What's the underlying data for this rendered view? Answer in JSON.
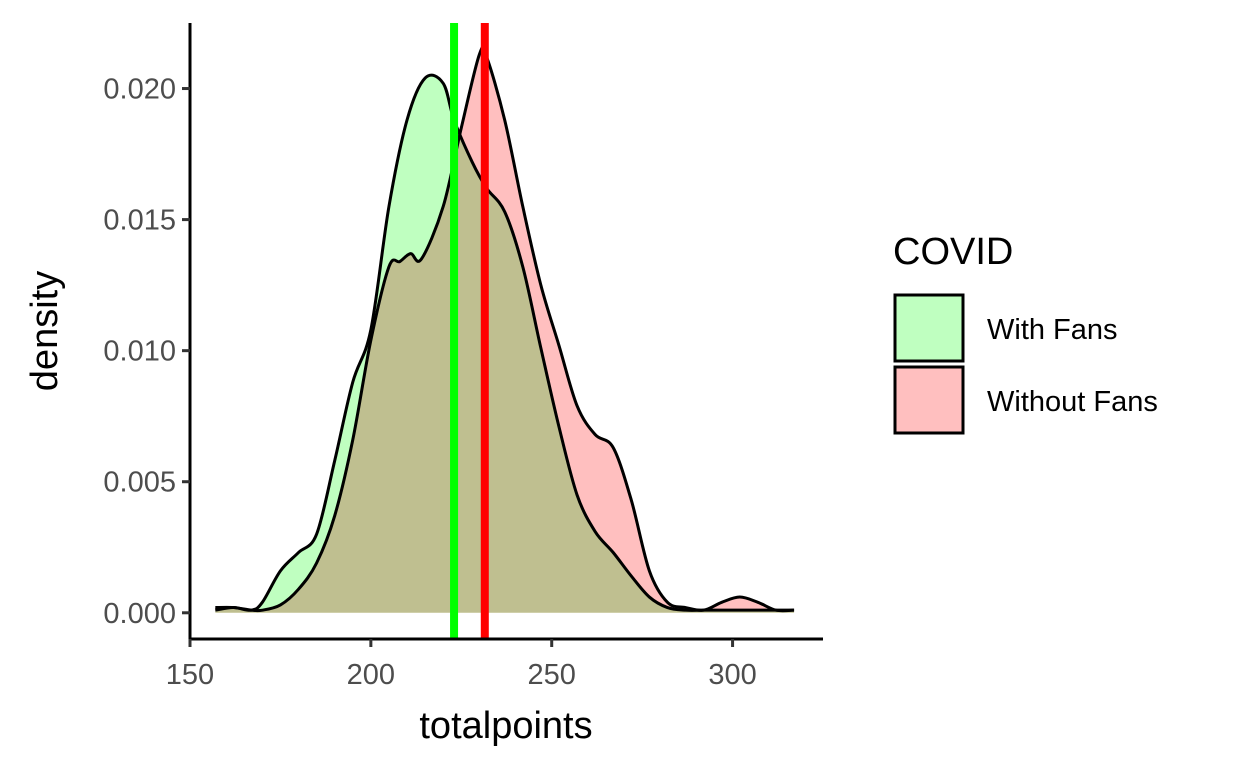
{
  "chart_data": {
    "type": "area",
    "xlabel": "totalpoints",
    "ylabel": "density",
    "xlim": [
      150,
      325
    ],
    "ylim": [
      -0.001,
      0.0225
    ],
    "x_ticks": [
      "150",
      "200",
      "250",
      "300"
    ],
    "x_tick_values": [
      150,
      200,
      250,
      300
    ],
    "y_ticks": [
      "0.000",
      "0.005",
      "0.010",
      "0.015",
      "0.020"
    ],
    "y_tick_values": [
      0,
      0.005,
      0.01,
      0.015,
      0.02
    ],
    "grid": false,
    "legend": {
      "title": "COVID",
      "placement": "right",
      "entries": [
        "With Fans",
        "Without Fans"
      ]
    },
    "series": [
      {
        "name": "With Fans",
        "fill_color": "#bfffc0",
        "line_color": "#000000",
        "points": [
          [
            157,
            0.0001
          ],
          [
            162,
            0.0002
          ],
          [
            167,
            0.0001
          ],
          [
            170,
            0.0004
          ],
          [
            175,
            0.0016
          ],
          [
            180,
            0.0023
          ],
          [
            185,
            0.003
          ],
          [
            190,
            0.0058
          ],
          [
            195,
            0.0088
          ],
          [
            200,
            0.0108
          ],
          [
            205,
            0.0155
          ],
          [
            210,
            0.0188
          ],
          [
            215,
            0.0204
          ],
          [
            220,
            0.0202
          ],
          [
            223,
            0.0188
          ],
          [
            228,
            0.0172
          ],
          [
            232,
            0.0162
          ],
          [
            237,
            0.0153
          ],
          [
            242,
            0.0132
          ],
          [
            247,
            0.0101
          ],
          [
            252,
            0.0071
          ],
          [
            257,
            0.0045
          ],
          [
            262,
            0.0031
          ],
          [
            267,
            0.0023
          ],
          [
            272,
            0.0014
          ],
          [
            277,
            0.0006
          ],
          [
            282,
            0.0002
          ],
          [
            287,
            0.0001
          ],
          [
            292,
            0.0001
          ],
          [
            297,
            0.0001
          ],
          [
            302,
            0.0001
          ],
          [
            307,
            0.0001
          ],
          [
            312,
            0.0001
          ],
          [
            317,
            0.0001
          ]
        ]
      },
      {
        "name": "Without Fans",
        "fill_color": "#ffbfbf",
        "line_color": "#000000",
        "points": [
          [
            157,
            0.0002
          ],
          [
            162,
            0.0002
          ],
          [
            167,
            0.0001
          ],
          [
            170,
            0.0001
          ],
          [
            175,
            0.0003
          ],
          [
            180,
            0.0009
          ],
          [
            185,
            0.0019
          ],
          [
            190,
            0.0037
          ],
          [
            195,
            0.0066
          ],
          [
            200,
            0.0104
          ],
          [
            205,
            0.0132
          ],
          [
            208,
            0.0134
          ],
          [
            211,
            0.0137
          ],
          [
            214,
            0.0135
          ],
          [
            220,
            0.0155
          ],
          [
            225,
            0.0185
          ],
          [
            230,
            0.0213
          ],
          [
            232,
            0.0212
          ],
          [
            237,
            0.0188
          ],
          [
            242,
            0.0155
          ],
          [
            247,
            0.0125
          ],
          [
            252,
            0.0102
          ],
          [
            257,
            0.0079
          ],
          [
            262,
            0.0068
          ],
          [
            267,
            0.0063
          ],
          [
            272,
            0.0043
          ],
          [
            277,
            0.0016
          ],
          [
            282,
            0.0004
          ],
          [
            287,
            0.0002
          ],
          [
            292,
            0.0001
          ],
          [
            297,
            0.0004
          ],
          [
            302,
            0.0006
          ],
          [
            307,
            0.0004
          ],
          [
            312,
            0.0001
          ],
          [
            317,
            0.0001
          ]
        ]
      }
    ],
    "reference_lines": [
      {
        "x": 223,
        "color": "#00ff00"
      },
      {
        "x": 231.5,
        "color": "#ff0000"
      }
    ]
  }
}
